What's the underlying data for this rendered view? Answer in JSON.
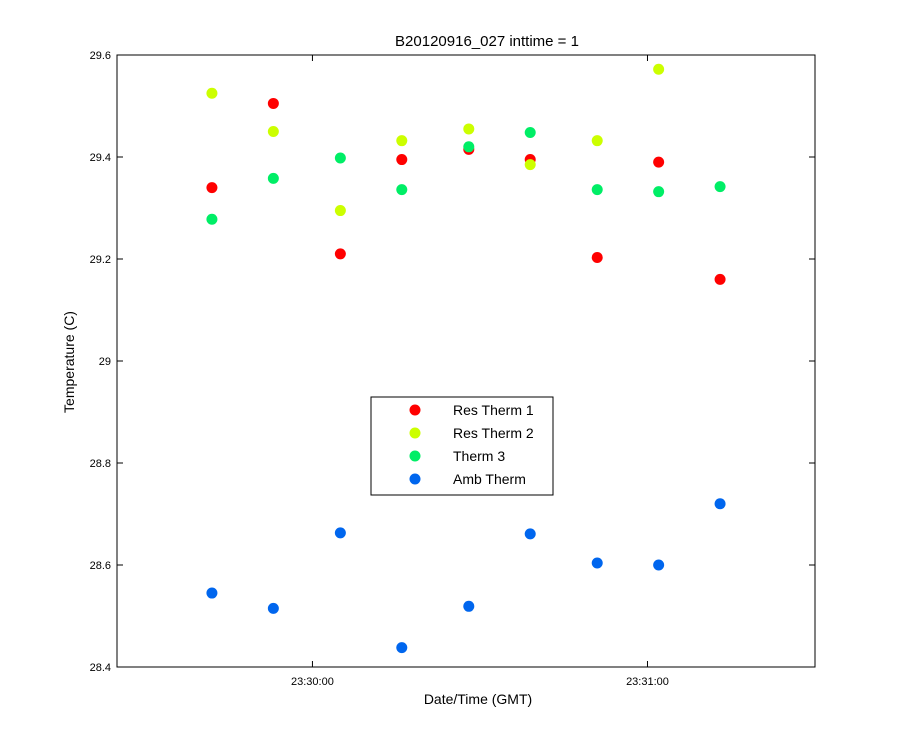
{
  "chart_data": {
    "type": "scatter",
    "title": "B20120916_027 inttime = 1",
    "xlabel": "Date/Time (GMT)",
    "ylabel": "Temperature (C)",
    "xlim": [
      "23:29:25",
      "23:31:30"
    ],
    "ylim": [
      28.4,
      29.6
    ],
    "x_ticks": [
      {
        "value": "23:30:00",
        "label": "23:30:00"
      },
      {
        "value": "23:31:00",
        "label": "23:31:00"
      }
    ],
    "y_ticks": [
      {
        "value": 28.4,
        "label": "28.4"
      },
      {
        "value": 28.6,
        "label": "28.6"
      },
      {
        "value": 28.8,
        "label": "28.8"
      },
      {
        "value": 29.0,
        "label": "29"
      },
      {
        "value": 29.2,
        "label": "29.2"
      },
      {
        "value": 29.4,
        "label": "29.4"
      },
      {
        "value": 29.6,
        "label": "29.6"
      }
    ],
    "grid": false,
    "legend_position": "center",
    "x": [
      "23:29:42",
      "23:29:53",
      "23:30:05",
      "23:30:16",
      "23:30:28",
      "23:30:39",
      "23:30:51",
      "23:31:02",
      "23:31:13"
    ],
    "series": [
      {
        "name": "Res Therm 1",
        "color": "#ff0000",
        "x": [
          "23:29:42",
          "23:29:53",
          "23:30:05",
          "23:30:16",
          "23:30:28",
          "23:30:39",
          "23:30:51",
          "23:31:02",
          "23:31:13"
        ],
        "values": [
          29.34,
          29.505,
          29.21,
          29.395,
          29.415,
          29.395,
          29.203,
          29.39,
          29.16
        ]
      },
      {
        "name": "Res Therm 2",
        "color": "#ccff00",
        "x": [
          "23:29:42",
          "23:29:53",
          "23:30:05",
          "23:30:16",
          "23:30:28",
          "23:30:39",
          "23:30:51",
          "23:31:02"
        ],
        "values": [
          29.525,
          29.45,
          29.295,
          29.432,
          29.455,
          29.385,
          29.432,
          29.572
        ]
      },
      {
        "name": "Therm 3",
        "color": "#00ee66",
        "x": [
          "23:29:42",
          "23:29:53",
          "23:30:05",
          "23:30:16",
          "23:30:28",
          "23:30:39",
          "23:30:51",
          "23:31:02",
          "23:31:13"
        ],
        "values": [
          29.278,
          29.358,
          29.398,
          29.336,
          29.42,
          29.448,
          29.336,
          29.332,
          29.342
        ]
      },
      {
        "name": "Amb Therm",
        "color": "#0066ee",
        "x": [
          "23:29:42",
          "23:29:53",
          "23:30:05",
          "23:30:16",
          "23:30:28",
          "23:30:39",
          "23:30:51",
          "23:31:02",
          "23:31:13"
        ],
        "values": [
          28.545,
          28.515,
          28.663,
          28.438,
          28.519,
          28.661,
          28.604,
          28.6,
          28.72
        ]
      }
    ]
  }
}
